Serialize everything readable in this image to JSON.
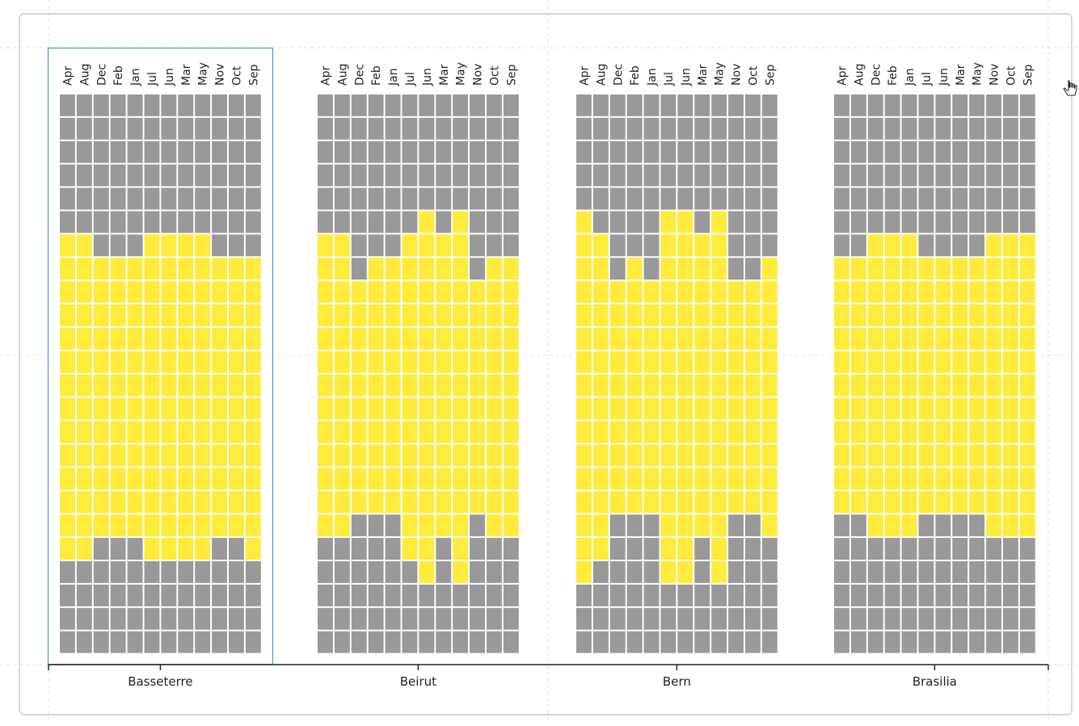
{
  "chart_data": {
    "type": "heatmap",
    "cell_colors": {
      "on": "#ffeb3b",
      "off": "#999999"
    },
    "panels": [
      {
        "city": "Basseterre",
        "months": [
          "Apr",
          "Aug",
          "Dec",
          "Feb",
          "Jan",
          "Jul",
          "Jun",
          "Mar",
          "May",
          "Nov",
          "Oct",
          "Sep"
        ],
        "daylight_rows": [
          [
            6,
            20
          ],
          [
            6,
            20
          ],
          [
            7,
            19
          ],
          [
            7,
            19
          ],
          [
            7,
            19
          ],
          [
            6,
            20
          ],
          [
            6,
            20
          ],
          [
            6,
            20
          ],
          [
            6,
            20
          ],
          [
            7,
            19
          ],
          [
            7,
            19
          ],
          [
            7,
            20
          ]
        ]
      },
      {
        "city": "Beirut",
        "months": [
          "Apr",
          "Aug",
          "Dec",
          "Feb",
          "Jan",
          "Jul",
          "Jun",
          "Mar",
          "May",
          "Nov",
          "Oct",
          "Sep"
        ],
        "daylight_rows": [
          [
            6,
            19
          ],
          [
            6,
            19
          ],
          [
            8,
            18
          ],
          [
            7,
            18
          ],
          [
            7,
            18
          ],
          [
            6,
            20
          ],
          [
            5,
            21
          ],
          [
            6,
            19
          ],
          [
            5,
            21
          ],
          [
            8,
            18
          ],
          [
            7,
            19
          ],
          [
            7,
            19
          ]
        ]
      },
      {
        "city": "Bern",
        "months": [
          "Apr",
          "Aug",
          "Dec",
          "Feb",
          "Jan",
          "Jul",
          "Jun",
          "Mar",
          "May",
          "Nov",
          "Oct",
          "Sep"
        ],
        "daylight_rows": [
          [
            5,
            21
          ],
          [
            6,
            20
          ],
          [
            8,
            18
          ],
          [
            7,
            18
          ],
          [
            8,
            18
          ],
          [
            5,
            21
          ],
          [
            5,
            21
          ],
          [
            6,
            19
          ],
          [
            5,
            21
          ],
          [
            8,
            18
          ],
          [
            8,
            18
          ],
          [
            7,
            19
          ]
        ]
      },
      {
        "city": "Brasilia",
        "months": [
          "Apr",
          "Aug",
          "Dec",
          "Feb",
          "Jan",
          "Jul",
          "Jun",
          "Mar",
          "May",
          "Nov",
          "Oct",
          "Sep"
        ],
        "daylight_rows": [
          [
            7,
            18
          ],
          [
            7,
            18
          ],
          [
            6,
            19
          ],
          [
            6,
            19
          ],
          [
            6,
            19
          ],
          [
            7,
            18
          ],
          [
            7,
            18
          ],
          [
            7,
            18
          ],
          [
            7,
            18
          ],
          [
            6,
            19
          ],
          [
            6,
            19
          ],
          [
            6,
            19
          ]
        ]
      }
    ]
  }
}
